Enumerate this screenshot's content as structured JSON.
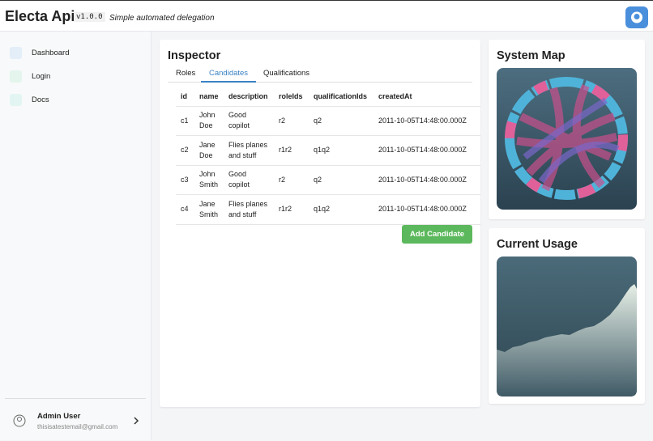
{
  "header": {
    "title": "Electa Api",
    "version": "v1.0.0",
    "tagline": "Simple automated delegation"
  },
  "sidebar": {
    "nav": [
      "Dashboard",
      "Login",
      "Docs"
    ],
    "user": {
      "name": "Admin User",
      "email": "thisisatestemail@gmail.com"
    }
  },
  "inspector": {
    "title": "Inspector",
    "tabs": [
      "Roles",
      "Candidates",
      "Qualifications"
    ],
    "table": {
      "columns": [
        "id",
        "name",
        "description",
        "roleIds",
        "qualificationIds",
        "createdAt"
      ],
      "rows": [
        [
          "c1",
          "John Doe",
          "Good copilot",
          "r2",
          "q2",
          "2011-10-05T14:48:00.000Z"
        ],
        [
          "c2",
          "Jane Doe",
          "Flies planes and stuff",
          "r1r2",
          "q1q2",
          "2011-10-05T14:48:00.000Z"
        ],
        [
          "c3",
          "John Smith",
          "Good copilot",
          "r2",
          "q2",
          "2011-10-05T14:48:00.000Z"
        ],
        [
          "c4",
          "Jane Smith",
          "Flies planes and stuff",
          "r1r2",
          "q1q2",
          "2011-10-05T14:48:00.000Z"
        ]
      ]
    },
    "button": "Add Candidate"
  },
  "cards": {
    "system_map": {
      "title": "System Map"
    },
    "current_usage": {
      "title": "Current Usage"
    }
  }
}
